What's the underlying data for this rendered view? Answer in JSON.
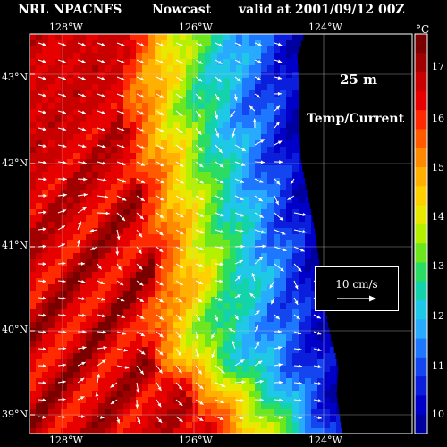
{
  "header": {
    "title_left": "NRL NPACNFS",
    "title_mid": "Nowcast",
    "title_right": "valid at 2001/09/12 00Z"
  },
  "map": {
    "depth": "25 m",
    "variable": "Temp/Current",
    "lon_top": [
      "128°W",
      "126°W",
      "124°W"
    ],
    "lon_bottom": [
      "128°W",
      "126°W",
      "124°W"
    ],
    "lat": [
      "43°N",
      "42°N",
      "41°N",
      "40°N",
      "39°N"
    ],
    "land_color": "#000000"
  },
  "colorbar": {
    "unit": "°C",
    "ticks": [
      "17",
      "16",
      "15",
      "14",
      "13",
      "12",
      "11",
      "10"
    ],
    "colors": [
      "#7a0000",
      "#a00000",
      "#c80000",
      "#e60000",
      "#ff2a00",
      "#ff5a00",
      "#ff8a00",
      "#ffb000",
      "#ffd000",
      "#e8e800",
      "#b4f000",
      "#6ee61e",
      "#2adc64",
      "#14d2aa",
      "#1ec8e6",
      "#28aaff",
      "#1e78ff",
      "#1446f0",
      "#0a1edc",
      "#0000c8",
      "#0000a0"
    ]
  },
  "scale": {
    "label": "10 cm/s"
  }
}
